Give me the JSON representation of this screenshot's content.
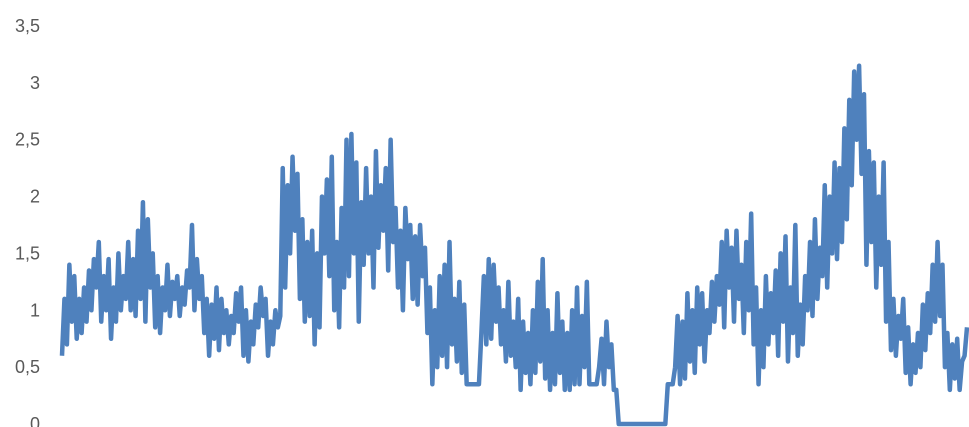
{
  "chart_data": {
    "type": "line",
    "title": "",
    "xlabel": "",
    "ylabel": "",
    "ylim": [
      0,
      3.5
    ],
    "grid": false,
    "legend": "none",
    "y_ticks": [
      "0",
      "0,5",
      "1",
      "1,5",
      "2",
      "2,5",
      "3",
      "3,5"
    ],
    "series": [
      {
        "color": "#4f81bd",
        "values": [
          0.6,
          1.1,
          0.7,
          1.4,
          0.9,
          1.3,
          0.75,
          1.1,
          0.8,
          1.2,
          0.9,
          1.35,
          1.0,
          1.45,
          1.2,
          1.6,
          0.9,
          1.3,
          1.0,
          1.45,
          0.75,
          1.2,
          0.9,
          1.5,
          1.0,
          1.3,
          1.1,
          1.6,
          1.0,
          1.45,
          0.95,
          1.7,
          1.1,
          1.95,
          0.9,
          1.8,
          1.2,
          1.5,
          0.85,
          1.3,
          0.8,
          1.2,
          1.0,
          1.4,
          0.95,
          1.25,
          1.1,
          1.3,
          0.95,
          1.2,
          1.05,
          1.35,
          1.2,
          1.75,
          1.0,
          1.45,
          1.1,
          1.3,
          0.8,
          1.1,
          0.6,
          1.05,
          0.75,
          1.2,
          0.65,
          1.1,
          0.8,
          1.0,
          0.7,
          0.95,
          0.8,
          1.15,
          0.9,
          1.2,
          0.6,
          1.0,
          0.55,
          0.9,
          0.7,
          1.05,
          0.85,
          1.2,
          0.95,
          1.1,
          0.6,
          0.9,
          0.7,
          1.0,
          0.85,
          0.95,
          2.25,
          1.2,
          2.1,
          1.5,
          2.35,
          1.7,
          2.2,
          1.1,
          1.8,
          0.9,
          1.6,
          0.95,
          1.7,
          0.7,
          1.5,
          0.85,
          2.0,
          1.5,
          2.15,
          1.3,
          2.35,
          1.0,
          1.6,
          0.85,
          1.9,
          1.2,
          2.5,
          1.3,
          2.55,
          1.5,
          2.3,
          0.9,
          1.95,
          1.4,
          2.25,
          1.5,
          2.0,
          1.2,
          2.4,
          1.55,
          2.1,
          1.7,
          2.25,
          1.35,
          2.5,
          1.6,
          1.9,
          1.2,
          1.7,
          1.0,
          1.9,
          1.45,
          1.75,
          1.1,
          1.65,
          1.05,
          1.75,
          1.3,
          1.55,
          0.8,
          1.2,
          0.35,
          1.0,
          0.5,
          1.3,
          0.6,
          1.4,
          0.5,
          1.6,
          0.7,
          1.1,
          0.55,
          1.25,
          0.45,
          1.05,
          0.35,
          0.35,
          0.35,
          0.35,
          0.35,
          0.35,
          0.8,
          1.3,
          0.7,
          1.45,
          0.75,
          1.4,
          0.9,
          1.2,
          0.7,
          1.0,
          0.55,
          1.25,
          0.6,
          0.9,
          0.5,
          1.1,
          0.3,
          0.9,
          0.45,
          0.8,
          0.35,
          1.0,
          0.45,
          1.25,
          0.55,
          1.45,
          0.4,
          1.0,
          0.3,
          0.8,
          0.35,
          1.15,
          0.45,
          0.9,
          0.3,
          0.8,
          0.3,
          1.0,
          0.35,
          1.2,
          0.35,
          0.95,
          0.5,
          1.25,
          0.35,
          0.35,
          0.35,
          0.35,
          0.5,
          0.75,
          0.35,
          0.9,
          0.5,
          0.7,
          0.3,
          0.3,
          0.0,
          0.0,
          0.0,
          0.0,
          0.0,
          0.0,
          0.0,
          0.0,
          0.0,
          0.0,
          0.0,
          0.0,
          0.0,
          0.0,
          0.0,
          0.0,
          0.0,
          0.0,
          0.0,
          0.0,
          0.35,
          0.35,
          0.35,
          0.5,
          0.95,
          0.35,
          0.9,
          0.4,
          1.15,
          0.55,
          1.0,
          0.45,
          1.2,
          0.7,
          1.15,
          0.55,
          1.0,
          0.8,
          1.25,
          0.9,
          1.3,
          1.05,
          1.6,
          0.85,
          1.7,
          1.2,
          1.55,
          0.9,
          1.7,
          1.1,
          1.4,
          0.8,
          1.6,
          1.0,
          1.85,
          0.7,
          1.2,
          0.35,
          1.0,
          0.5,
          1.3,
          0.7,
          1.15,
          0.8,
          1.35,
          0.6,
          1.5,
          0.9,
          1.65,
          0.55,
          1.2,
          0.8,
          1.75,
          0.6,
          1.05,
          0.7,
          1.3,
          1.0,
          1.6,
          0.95,
          1.8,
          1.1,
          1.55,
          1.3,
          2.1,
          1.2,
          2.0,
          1.5,
          2.3,
          1.45,
          2.25,
          1.6,
          2.6,
          1.8,
          2.85,
          2.1,
          3.1,
          2.5,
          3.15,
          2.2,
          2.9,
          1.4,
          2.4,
          1.6,
          2.3,
          1.2,
          2.0,
          1.4,
          2.3,
          0.9,
          1.6,
          0.65,
          1.1,
          0.6,
          0.95,
          0.75,
          1.1,
          0.45,
          0.85,
          0.35,
          0.7,
          0.45,
          0.8,
          0.5,
          1.05,
          0.65,
          1.15,
          0.8,
          1.4,
          0.9,
          1.6,
          0.95,
          1.4,
          0.5,
          0.8,
          0.3,
          0.7,
          0.4,
          0.75,
          0.3,
          0.55,
          0.6,
          0.85
        ]
      }
    ]
  }
}
